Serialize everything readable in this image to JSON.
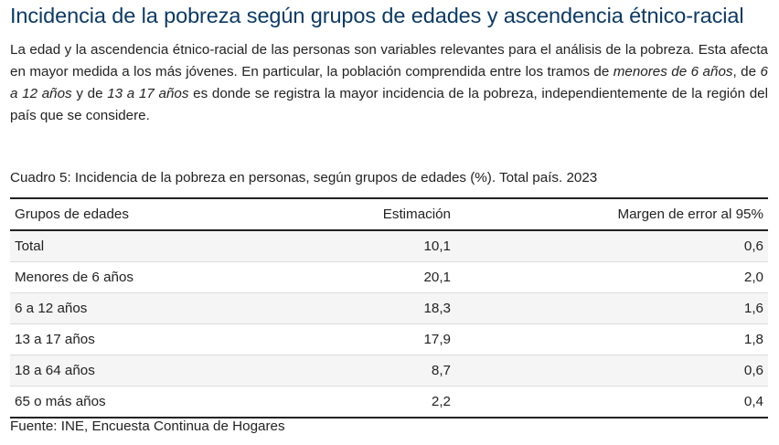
{
  "title": "Incidencia de la pobreza según grupos de edades y ascendencia étnico-racial",
  "paragraph": {
    "p1": "La edad y la ascendencia étnico-racial de las personas son variables relevantes para el análisis de la pobreza. Esta afecta en mayor medida a los más jóvenes. En particular, la población comprendida entre los tramos de ",
    "em1": "menores de 6 años",
    "p2": ", de ",
    "em2": "6 a 12 años",
    "p3": " y de ",
    "em3": "13 a 17 años",
    "p4": " es donde se registra la mayor incidencia de la pobreza, independientemente de la región del país que se considere."
  },
  "table": {
    "caption": "Cuadro 5: Incidencia de la pobreza en personas, según grupos de edades (%). Total país. 2023",
    "headers": [
      "Grupos de edades",
      "Estimación",
      "Margen de error al 95%"
    ],
    "rows": [
      [
        "Total",
        "10,1",
        "0,6"
      ],
      [
        "Menores de 6 años",
        "20,1",
        "2,0"
      ],
      [
        "6 a 12 años",
        "18,3",
        "1,6"
      ],
      [
        "13 a 17 años",
        "17,9",
        "1,8"
      ],
      [
        "18 a 64 años",
        "8,7",
        "0,6"
      ],
      [
        "65 o más años",
        "2,2",
        "0,4"
      ]
    ],
    "source": "Fuente: INE, Encuesta Continua de Hogares"
  }
}
